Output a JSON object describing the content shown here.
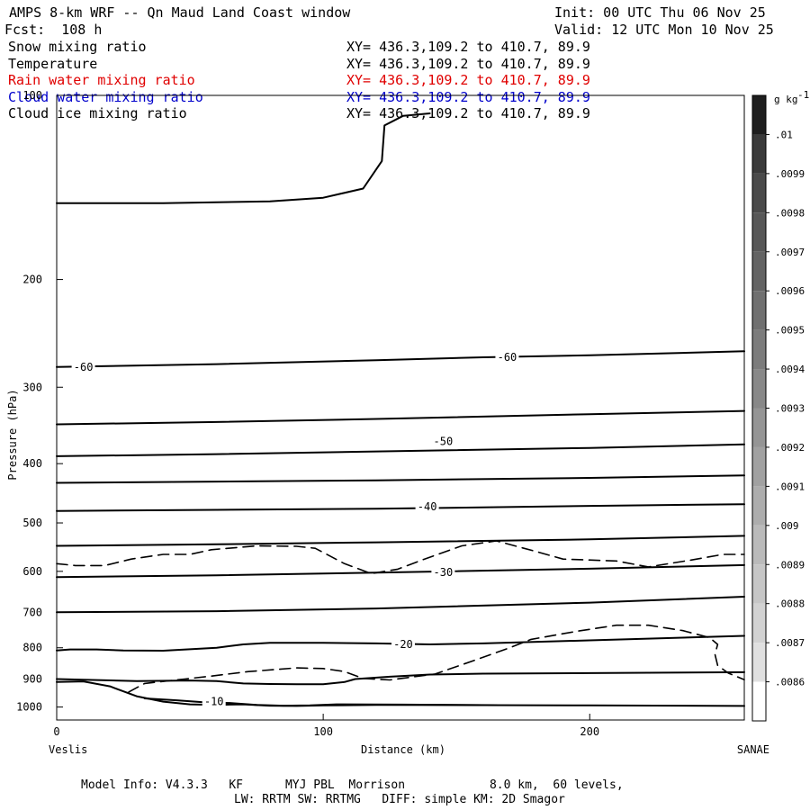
{
  "header": {
    "title": "AMPS 8-km WRF -- Qn Maud Land Coast window",
    "init": "Init: 00 UTC Thu 06 Nov 25",
    "fcst": "Fcst:  108 h",
    "valid": "Valid: 12 UTC Mon 10 Nov 25"
  },
  "fields": [
    {
      "name": "Snow mixing ratio",
      "xy": "XY= 436.3,109.2 to 410.7, 89.9",
      "color": "#000000"
    },
    {
      "name": "Temperature",
      "xy": "XY= 436.3,109.2 to 410.7, 89.9",
      "color": "#000000"
    },
    {
      "name": "Rain water mixing ratio",
      "xy": "XY= 436.3,109.2 to 410.7, 89.9",
      "color": "#e00000"
    },
    {
      "name": "Cloud water mixing ratio",
      "xy": "XY= 436.3,109.2 to 410.7, 89.9",
      "color": "#0000cc"
    },
    {
      "name": "Cloud ice mixing ratio",
      "xy": "XY= 436.3,109.2 to 410.7, 89.9",
      "color": "#000000"
    }
  ],
  "footer": {
    "line1": "Model Info: V4.3.3   KF      MYJ PBL  Morrison            8.0 km,  60 levels,",
    "line2": "LW: RRTM SW: RRTMG   DIFF: simple KM: 2D Smagor",
    "start_label": "Veslis",
    "end_label": "SANAE"
  },
  "chart_data": {
    "type": "line",
    "title": "AMPS 8-km WRF -- Qn Maud Land Coast window",
    "xlabel": "Distance (km)",
    "ylabel": "Pressure (hPa)",
    "xlim": [
      0,
      258
    ],
    "ylim": [
      1050,
      100
    ],
    "y_log": true,
    "x_ticks": [
      0,
      100,
      200
    ],
    "y_ticks": [
      100,
      200,
      300,
      400,
      500,
      600,
      700,
      800,
      900,
      1000
    ],
    "colorbar": {
      "unit": "g kg",
      "unit_exp": "-1",
      "labels": [
        ".01",
        ".0099",
        ".0098",
        ".0097",
        ".0096",
        ".0095",
        ".0094",
        ".0093",
        ".0092",
        ".0091",
        ".009",
        ".0089",
        ".0088",
        ".0087",
        ".0086"
      ],
      "colors": [
        "#1e1e1e",
        "#3a3a3a",
        "#4a4a4a",
        "#575757",
        "#636363",
        "#707070",
        "#7c7c7c",
        "#888888",
        "#959595",
        "#a1a1a1",
        "#adadad",
        "#bababa",
        "#c6c6c6",
        "#d2d2d2",
        "#e0e0e0",
        "#ffffff"
      ]
    },
    "isotherm_labels": [
      {
        "text": "-60",
        "x": 10,
        "p": 278
      },
      {
        "text": "-60",
        "x": 169,
        "p": 268
      },
      {
        "text": "-50",
        "x": 145,
        "p": 368
      },
      {
        "text": "-40",
        "x": 139,
        "p": 470
      },
      {
        "text": "-30",
        "x": 145,
        "p": 602
      },
      {
        "text": "-20",
        "x": 130,
        "p": 790
      },
      {
        "text": "-10",
        "x": 59,
        "p": 980
      }
    ],
    "series": [
      {
        "name": "Snow mixing ratio contour (upper)",
        "style": "dashed",
        "points": [
          [
            0,
            583
          ],
          [
            7,
            587
          ],
          [
            18,
            587
          ],
          [
            28,
            573
          ],
          [
            40,
            563
          ],
          [
            50,
            563
          ],
          [
            58,
            553
          ],
          [
            75,
            545
          ],
          [
            90,
            546
          ],
          [
            97,
            550
          ],
          [
            108,
            583
          ],
          [
            118,
            605
          ],
          [
            128,
            595
          ],
          [
            138,
            573
          ],
          [
            152,
            545
          ],
          [
            165,
            535
          ],
          [
            180,
            557
          ],
          [
            190,
            573
          ],
          [
            210,
            577
          ],
          [
            222,
            590
          ],
          [
            238,
            575
          ],
          [
            250,
            563
          ],
          [
            258,
            563
          ]
        ]
      },
      {
        "name": "Snow mixing ratio contour (lower)",
        "style": "dashed",
        "points": [
          [
            27,
            945
          ],
          [
            33,
            915
          ],
          [
            48,
            900
          ],
          [
            58,
            890
          ],
          [
            72,
            875
          ],
          [
            90,
            863
          ],
          [
            100,
            865
          ],
          [
            108,
            875
          ],
          [
            115,
            898
          ],
          [
            125,
            903
          ],
          [
            142,
            883
          ],
          [
            158,
            835
          ],
          [
            170,
            800
          ],
          [
            178,
            775
          ],
          [
            195,
            752
          ],
          [
            210,
            735
          ],
          [
            222,
            735
          ],
          [
            235,
            750
          ],
          [
            245,
            770
          ],
          [
            248,
            790
          ],
          [
            247,
            820
          ],
          [
            248,
            855
          ],
          [
            252,
            880
          ],
          [
            258,
            902
          ]
        ]
      },
      {
        "name": "-60 C isotherm",
        "style": "solid",
        "points": [
          [
            0,
            278
          ],
          [
            60,
            275
          ],
          [
            120,
            271
          ],
          [
            160,
            268
          ],
          [
            200,
            266
          ],
          [
            258,
            262
          ]
        ]
      },
      {
        "name": "isotherm 345 hPa",
        "style": "solid",
        "points": [
          [
            0,
            345
          ],
          [
            60,
            342
          ],
          [
            120,
            338
          ],
          [
            200,
            332
          ],
          [
            258,
            328
          ]
        ]
      },
      {
        "name": "-50 C isotherm",
        "style": "solid",
        "points": [
          [
            0,
            389
          ],
          [
            60,
            386
          ],
          [
            120,
            382
          ],
          [
            200,
            377
          ],
          [
            258,
            372
          ]
        ]
      },
      {
        "name": "isotherm 430 hPa",
        "style": "solid",
        "points": [
          [
            0,
            430
          ],
          [
            60,
            428
          ],
          [
            120,
            426
          ],
          [
            200,
            422
          ],
          [
            258,
            418
          ]
        ]
      },
      {
        "name": "-40 C isotherm",
        "style": "solid",
        "points": [
          [
            0,
            478
          ],
          [
            60,
            476
          ],
          [
            120,
            474
          ],
          [
            200,
            469
          ],
          [
            258,
            466
          ]
        ]
      },
      {
        "name": "isotherm 545 hPa",
        "style": "solid",
        "points": [
          [
            0,
            545
          ],
          [
            60,
            542
          ],
          [
            120,
            538
          ],
          [
            200,
            532
          ],
          [
            258,
            525
          ]
        ]
      },
      {
        "name": "-30 C isotherm",
        "style": "solid",
        "points": [
          [
            0,
            613
          ],
          [
            60,
            609
          ],
          [
            120,
            603
          ],
          [
            200,
            594
          ],
          [
            258,
            586
          ]
        ]
      },
      {
        "name": "isotherm 700 hPa",
        "style": "solid",
        "points": [
          [
            0,
            700
          ],
          [
            60,
            697
          ],
          [
            120,
            690
          ],
          [
            200,
            675
          ],
          [
            258,
            660
          ]
        ]
      },
      {
        "name": "-20 C isotherm",
        "style": "solid",
        "points": [
          [
            0,
            808
          ],
          [
            5,
            805
          ],
          [
            15,
            805
          ],
          [
            25,
            808
          ],
          [
            40,
            809
          ],
          [
            60,
            800
          ],
          [
            70,
            790
          ],
          [
            80,
            785
          ],
          [
            100,
            785
          ],
          [
            120,
            787
          ],
          [
            140,
            790
          ],
          [
            160,
            787
          ],
          [
            200,
            778
          ],
          [
            258,
            765
          ]
        ]
      },
      {
        "name": "isotherm 880 hPa",
        "style": "solid",
        "points": [
          [
            0,
            900
          ],
          [
            10,
            902
          ],
          [
            30,
            907
          ],
          [
            50,
            905
          ],
          [
            60,
            907
          ],
          [
            70,
            915
          ],
          [
            80,
            917
          ],
          [
            90,
            918
          ],
          [
            100,
            918
          ],
          [
            108,
            910
          ],
          [
            112,
            900
          ],
          [
            125,
            892
          ],
          [
            140,
            885
          ],
          [
            160,
            882
          ],
          [
            200,
            880
          ],
          [
            258,
            877
          ]
        ]
      },
      {
        "name": "-10 C isotherm / terrain",
        "style": "solid",
        "points": [
          [
            0,
            910
          ],
          [
            10,
            908
          ],
          [
            20,
            925
          ],
          [
            30,
            960
          ],
          [
            40,
            980
          ],
          [
            50,
            990
          ],
          [
            60,
            992
          ],
          [
            70,
            990
          ],
          [
            80,
            995
          ],
          [
            90,
            996
          ],
          [
            100,
            994
          ],
          [
            120,
            992
          ],
          [
            160,
            993
          ],
          [
            200,
            994
          ],
          [
            258,
            996
          ]
        ]
      },
      {
        "name": "inner contour near surface",
        "style": "solid",
        "points": [
          [
            33,
            968
          ],
          [
            45,
            975
          ],
          [
            55,
            982
          ],
          [
            65,
            985
          ],
          [
            75,
            992
          ],
          [
            85,
            995
          ],
          [
            95,
            994
          ],
          [
            105,
            990
          ],
          [
            130,
            991
          ],
          [
            165,
            993
          ]
        ]
      },
      {
        "name": "contour near 100 hPa",
        "style": "solid",
        "points": [
          [
            0,
            150
          ],
          [
            40,
            150
          ],
          [
            80,
            149
          ],
          [
            100,
            147
          ],
          [
            115,
            142
          ],
          [
            122,
            128
          ],
          [
            123,
            112
          ],
          [
            130,
            108
          ],
          [
            140,
            107
          ]
        ]
      }
    ]
  }
}
